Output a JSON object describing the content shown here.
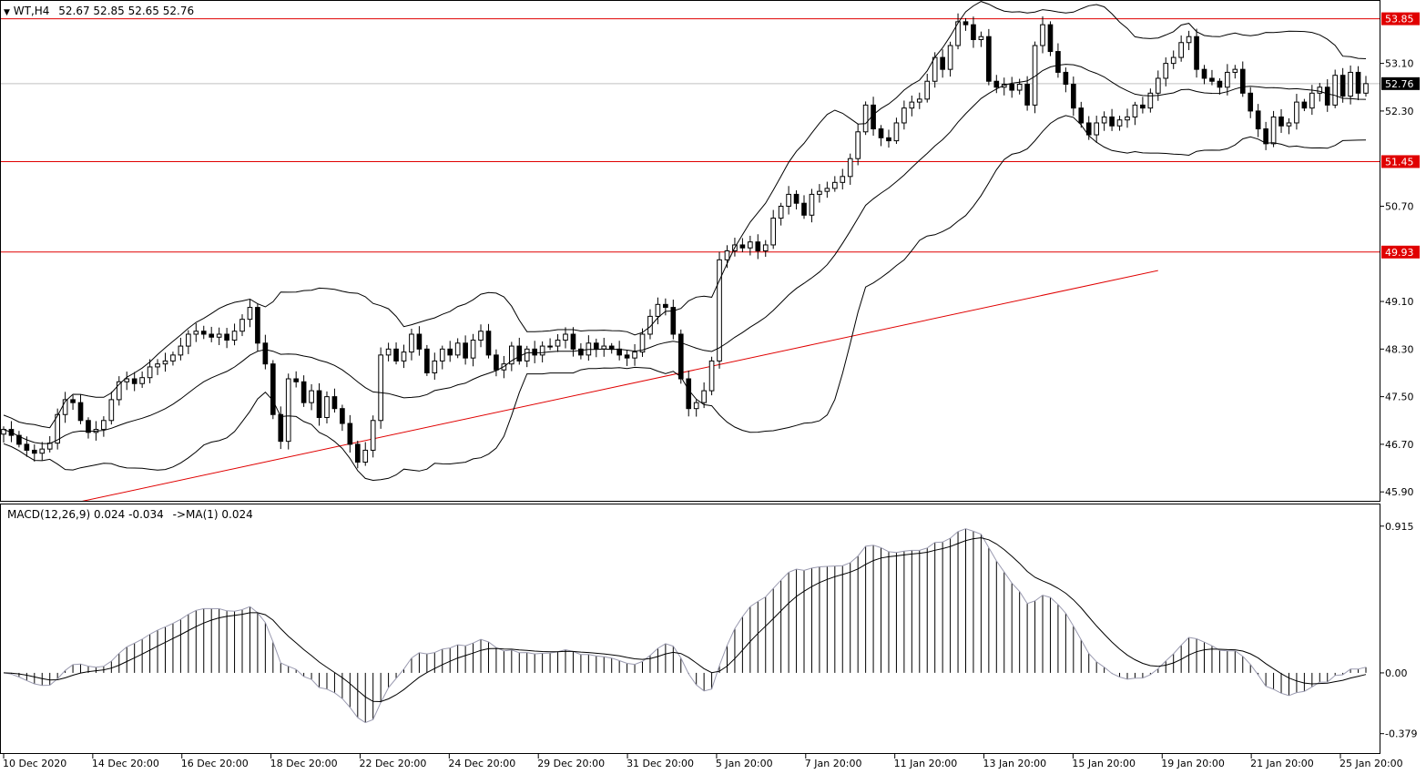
{
  "header": {
    "symbol": "WT,H4",
    "ohlc": "52.67 52.85 52.65 52.76",
    "macd_label": "MACD(12,26,9) 0.024 -0.034",
    "ma_label": "->MA(1) 0.024"
  },
  "colors": {
    "level_line": "#e00000",
    "current_price_bg": "#000000",
    "level_tag_bg": "#e00000",
    "candle": "#000000",
    "band": "#000000",
    "macd_hist": "#000000",
    "signal": "#000000"
  },
  "chart_data": [
    {
      "type": "candlestick",
      "title": "WT,H4",
      "y_ticks": [
        "53.10",
        "52.30",
        "50.70",
        "49.10",
        "48.30",
        "47.50",
        "46.70",
        "45.90"
      ],
      "x_ticks": [
        "10 Dec 2020",
        "14 Dec 20:00",
        "16 Dec 20:00",
        "18 Dec 20:00",
        "22 Dec 20:00",
        "24 Dec 20:00",
        "29 Dec 20:00",
        "31 Dec 20:00",
        "5 Jan 20:00",
        "7 Jan 20:00",
        "11 Jan 20:00",
        "13 Jan 20:00",
        "15 Jan 20:00",
        "19 Jan 20:00",
        "21 Jan 20:00",
        "25 Jan 20:00"
      ],
      "ylim": [
        45.75,
        54.15
      ],
      "current_price": 52.76,
      "current_price_label": "52.76",
      "horizontal_levels": [
        {
          "value": 53.85,
          "label": "53.85"
        },
        {
          "value": 51.45,
          "label": "51.45"
        },
        {
          "value": 49.93,
          "label": "49.93"
        }
      ],
      "trendline": {
        "from": [
          0,
          45.46
        ],
        "to": [
          150,
          49.62
        ]
      },
      "close_series": [
        46.95,
        46.85,
        46.7,
        46.6,
        46.55,
        46.62,
        46.72,
        47.2,
        47.45,
        47.4,
        47.1,
        46.9,
        46.95,
        47.1,
        47.45,
        47.75,
        47.8,
        47.72,
        47.82,
        48.0,
        48.05,
        48.1,
        48.2,
        48.35,
        48.55,
        48.6,
        48.55,
        48.5,
        48.55,
        48.45,
        48.6,
        48.8,
        49.0,
        48.4,
        48.05,
        47.2,
        46.75,
        47.8,
        47.75,
        47.4,
        47.6,
        47.15,
        47.5,
        47.3,
        47.05,
        46.7,
        46.4,
        46.6,
        47.1,
        48.2,
        48.3,
        48.1,
        48.25,
        48.55,
        48.3,
        47.9,
        48.1,
        48.3,
        48.2,
        48.4,
        48.15,
        48.45,
        48.6,
        48.2,
        47.95,
        48.05,
        48.35,
        48.1,
        48.3,
        48.2,
        48.35,
        48.35,
        48.45,
        48.55,
        48.3,
        48.2,
        48.4,
        48.3,
        48.35,
        48.3,
        48.2,
        48.15,
        48.25,
        48.55,
        48.85,
        49.05,
        49.0,
        48.55,
        47.8,
        47.3,
        47.4,
        47.6,
        48.1,
        49.8,
        49.95,
        50.05,
        50.0,
        50.1,
        49.95,
        50.05,
        50.5,
        50.7,
        50.9,
        50.75,
        50.55,
        50.9,
        50.95,
        51.0,
        51.1,
        51.2,
        51.5,
        51.95,
        52.4,
        52.0,
        51.85,
        51.8,
        52.1,
        52.35,
        52.45,
        52.5,
        52.8,
        53.2,
        53.0,
        53.4,
        53.8,
        53.75,
        53.5,
        53.55,
        52.8,
        52.7,
        52.75,
        52.65,
        52.75,
        52.4,
        53.4,
        53.75,
        53.3,
        52.95,
        52.75,
        52.35,
        52.1,
        51.9,
        52.1,
        52.2,
        52.05,
        52.15,
        52.2,
        52.4,
        52.35,
        52.6,
        52.85,
        53.1,
        53.2,
        53.45,
        53.55,
        53.0,
        52.85,
        52.8,
        52.7,
        52.95,
        53.0,
        52.6,
        52.3,
        52.0,
        51.75,
        52.2,
        52.05,
        52.1,
        52.45,
        52.35,
        52.6,
        52.7,
        52.4,
        52.9,
        52.55,
        52.95,
        52.6,
        52.76
      ]
    },
    {
      "type": "bar",
      "title": "MACD(12,26,9)",
      "y_ticks": [
        "0.915",
        "0.00",
        "-0.379"
      ],
      "ylim": [
        -0.5,
        1.05
      ]
    }
  ]
}
